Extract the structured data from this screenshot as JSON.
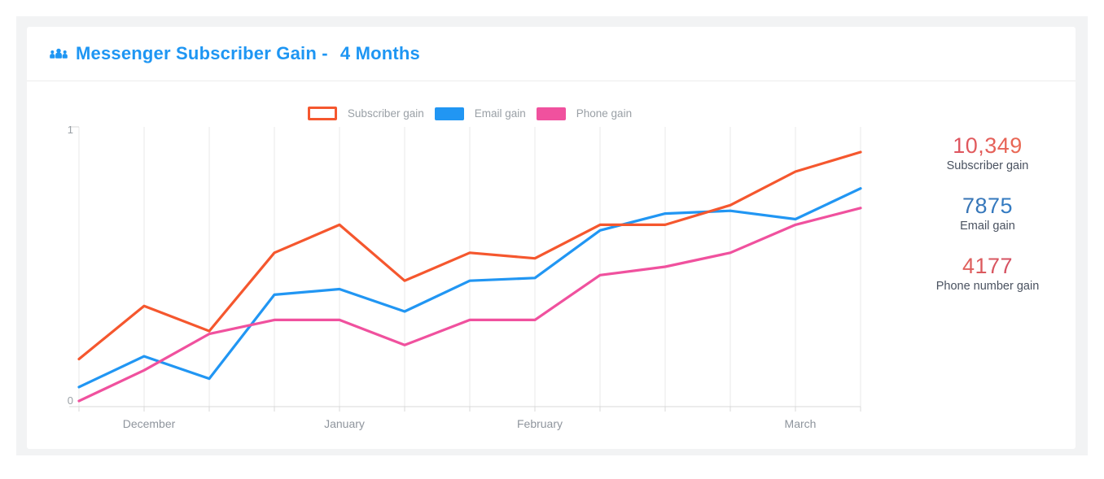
{
  "header": {
    "icon": "users-icon",
    "title_prefix": "Messenger Subscriber Gain -",
    "title_suffix": "4 Months",
    "accent": "#1e96f3"
  },
  "chart_data": {
    "type": "line",
    "title": "Messenger Subscriber Gain - 4 Months",
    "grid": "vertical-only",
    "legend_position": "top-center",
    "x_axis": {
      "points": 13,
      "month_ticks": [
        {
          "index": 1,
          "label": "December"
        },
        {
          "index": 4,
          "label": "January"
        },
        {
          "index": 7,
          "label": "February"
        },
        {
          "index": 11,
          "label": "March"
        }
      ]
    },
    "y_axis": {
      "min": 0,
      "max": 1,
      "tick_labels": [
        "0",
        "1"
      ]
    },
    "series": [
      {
        "name": "Subscriber gain",
        "color": "#f5572e",
        "legend_swatch": "outlined",
        "values": [
          0.17,
          0.36,
          0.27,
          0.55,
          0.65,
          0.45,
          0.55,
          0.53,
          0.65,
          0.65,
          0.72,
          0.84,
          0.91
        ]
      },
      {
        "name": "Email gain",
        "color": "#2196f3",
        "legend_swatch": "solid",
        "values": [
          0.07,
          0.18,
          0.1,
          0.4,
          0.42,
          0.34,
          0.45,
          0.46,
          0.63,
          0.69,
          0.7,
          0.67,
          0.78
        ]
      },
      {
        "name": "Phone gain",
        "color": "#f0519e",
        "legend_swatch": "solid",
        "values": [
          0.02,
          0.13,
          0.26,
          0.31,
          0.31,
          0.22,
          0.31,
          0.31,
          0.47,
          0.5,
          0.55,
          0.65,
          0.71
        ]
      }
    ]
  },
  "stats": [
    {
      "value": "10,349",
      "label": "Subscriber gain",
      "gradient": [
        "#d2406a",
        "#f57c49"
      ]
    },
    {
      "value": "7875",
      "label": "Email gain",
      "gradient": [
        "#3d689e",
        "#2d87d9"
      ]
    },
    {
      "value": "4177",
      "label": "Phone number gain",
      "gradient": [
        "#f0764f",
        "#c43a6e"
      ]
    }
  ]
}
